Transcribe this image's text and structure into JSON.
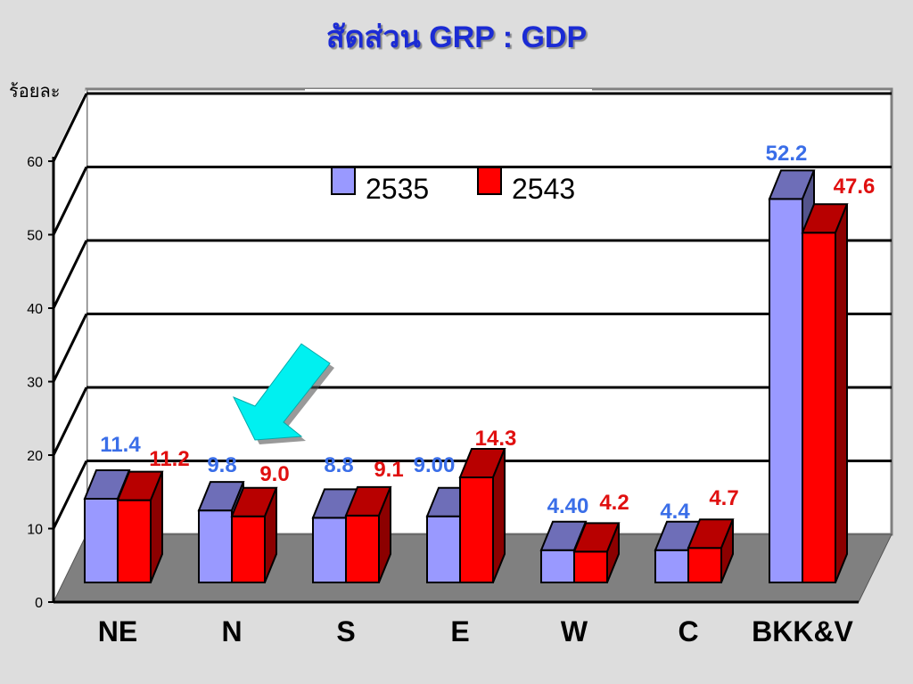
{
  "chart_data": {
    "type": "bar",
    "title": "สัดส่วน GRP : GDP",
    "ylabel": "ร้อยละ",
    "xlabel": "",
    "ylim": [
      0,
      60
    ],
    "yticks": [
      "0",
      "10",
      "20",
      "30",
      "40",
      "50",
      "60"
    ],
    "categories": [
      "NE",
      "N",
      "S",
      "E",
      "W",
      "C",
      "BKK&V"
    ],
    "series": [
      {
        "name": "2535",
        "values": [
          11.4,
          9.8,
          8.8,
          9.0,
          4.4,
          4.4,
          52.2
        ],
        "labels": [
          "11.4",
          "9.8",
          "8.8",
          "9.00",
          "4.40",
          "4.4",
          "52.2"
        ],
        "color": "#9999ff",
        "label_color": "#3a6ee8"
      },
      {
        "name": "2543",
        "values": [
          11.2,
          9.0,
          9.1,
          14.3,
          4.2,
          4.7,
          47.6
        ],
        "labels": [
          "11.2",
          "9.0",
          "9.1",
          "14.3",
          "4.2",
          "4.7",
          "47.6"
        ],
        "color": "#ff0000",
        "label_color": "#e01010"
      }
    ],
    "grid": true,
    "legend_position": "top-center",
    "style": "3d-bar",
    "annotations": [
      "cyan-arrow-pointing-at-N"
    ]
  }
}
